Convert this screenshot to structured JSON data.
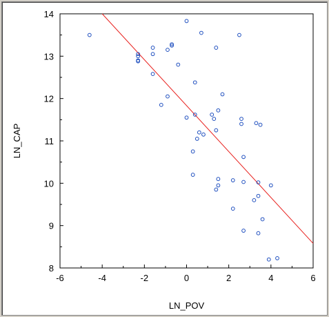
{
  "chart_data": {
    "type": "scatter",
    "xlabel": "LN_POV",
    "ylabel": "LN_CAP",
    "xlim": [
      -6,
      6
    ],
    "ylim": [
      8,
      14
    ],
    "xticks": [
      "-6",
      "-4",
      "-2",
      "0",
      "2",
      "4",
      "6"
    ],
    "yticks": [
      "8",
      "9",
      "10",
      "11",
      "12",
      "13",
      "14"
    ],
    "grid": false,
    "legend": "none",
    "point_color": "#1f4fbf",
    "fit_line_color": "#e8211e",
    "series": [
      {
        "points": [
          {
            "x": -4.6,
            "y": 13.5
          },
          {
            "x": -2.3,
            "y": 13.05
          },
          {
            "x": -2.3,
            "y": 13.0
          },
          {
            "x": -2.3,
            "y": 12.9
          },
          {
            "x": -2.3,
            "y": 12.88
          },
          {
            "x": -1.6,
            "y": 13.2
          },
          {
            "x": -1.6,
            "y": 13.05
          },
          {
            "x": -1.6,
            "y": 12.58
          },
          {
            "x": -0.9,
            "y": 13.15
          },
          {
            "x": -0.7,
            "y": 13.28
          },
          {
            "x": -0.7,
            "y": 13.25
          },
          {
            "x": -0.4,
            "y": 12.8
          },
          {
            "x": -1.2,
            "y": 11.85
          },
          {
            "x": -0.9,
            "y": 12.05
          },
          {
            "x": 0.0,
            "y": 13.83
          },
          {
            "x": 0.7,
            "y": 13.55
          },
          {
            "x": 1.4,
            "y": 13.2
          },
          {
            "x": 2.5,
            "y": 13.5
          },
          {
            "x": 0.4,
            "y": 12.38
          },
          {
            "x": 1.7,
            "y": 12.1
          },
          {
            "x": 0.0,
            "y": 11.55
          },
          {
            "x": 0.4,
            "y": 11.62
          },
          {
            "x": 1.2,
            "y": 11.62
          },
          {
            "x": 1.3,
            "y": 11.52
          },
          {
            "x": 1.5,
            "y": 11.72
          },
          {
            "x": 0.6,
            "y": 11.2
          },
          {
            "x": 0.8,
            "y": 11.15
          },
          {
            "x": 1.4,
            "y": 11.25
          },
          {
            "x": 0.5,
            "y": 11.05
          },
          {
            "x": 0.3,
            "y": 10.75
          },
          {
            "x": 0.3,
            "y": 10.2
          },
          {
            "x": 2.6,
            "y": 11.52
          },
          {
            "x": 2.6,
            "y": 11.4
          },
          {
            "x": 3.3,
            "y": 11.42
          },
          {
            "x": 3.5,
            "y": 11.38
          },
          {
            "x": 2.7,
            "y": 10.62
          },
          {
            "x": 1.5,
            "y": 10.1
          },
          {
            "x": 1.5,
            "y": 9.95
          },
          {
            "x": 1.4,
            "y": 9.85
          },
          {
            "x": 2.2,
            "y": 10.07
          },
          {
            "x": 2.7,
            "y": 10.03
          },
          {
            "x": 3.4,
            "y": 10.02
          },
          {
            "x": 4.0,
            "y": 9.95
          },
          {
            "x": 3.4,
            "y": 9.7
          },
          {
            "x": 3.2,
            "y": 9.6
          },
          {
            "x": 2.2,
            "y": 9.4
          },
          {
            "x": 3.6,
            "y": 9.15
          },
          {
            "x": 2.7,
            "y": 8.88
          },
          {
            "x": 3.4,
            "y": 8.82
          },
          {
            "x": 3.9,
            "y": 8.2
          },
          {
            "x": 4.3,
            "y": 8.23
          }
        ]
      }
    ],
    "fit_line": {
      "x": [
        -4.0,
        6.0
      ],
      "y": [
        14.0,
        8.58
      ]
    }
  }
}
